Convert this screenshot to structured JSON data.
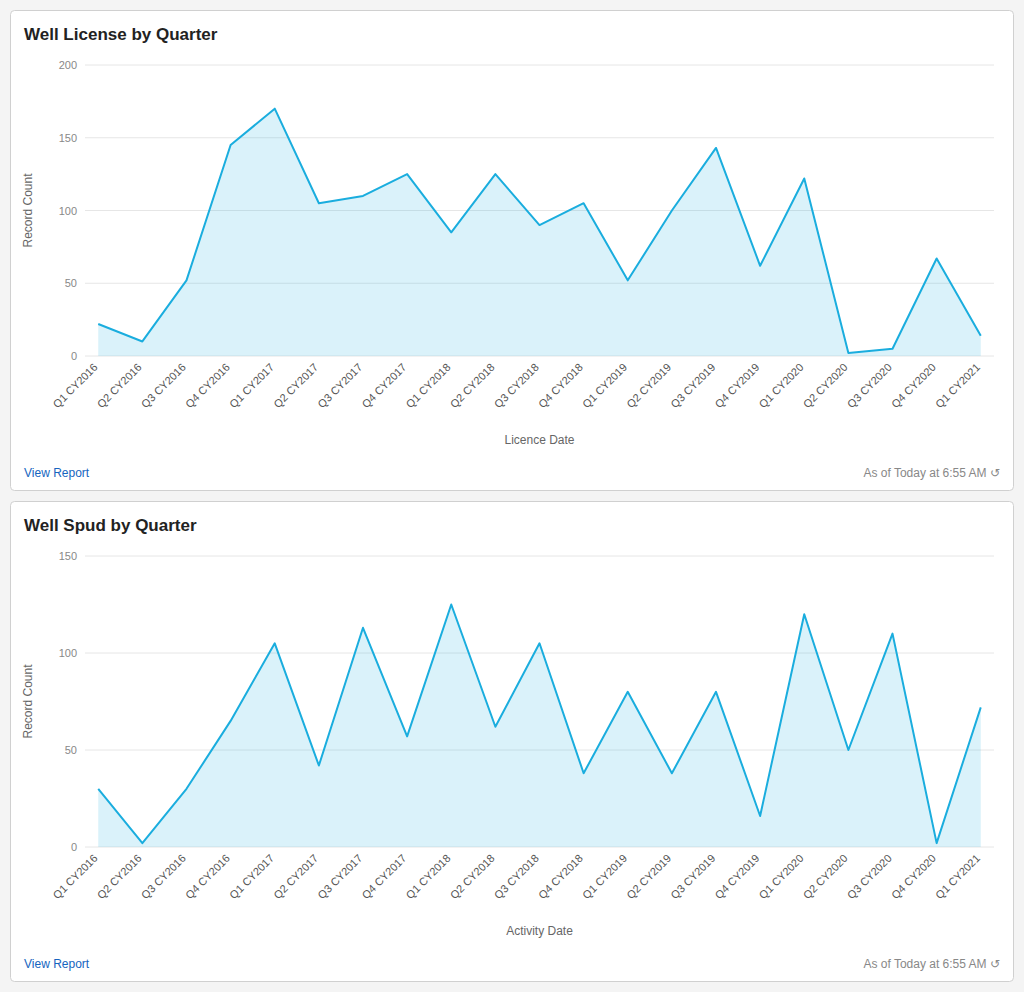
{
  "chart_data": [
    {
      "type": "area",
      "title": "Well License by Quarter",
      "x_label": "Licence Date",
      "y_label": "Record Count",
      "categories": [
        "Q1 CY2016",
        "Q2 CY2016",
        "Q3 CY2016",
        "Q4 CY2016",
        "Q1 CY2017",
        "Q2 CY2017",
        "Q3 CY2017",
        "Q4 CY2017",
        "Q1 CY2018",
        "Q2 CY2018",
        "Q3 CY2018",
        "Q4 CY2018",
        "Q1 CY2019",
        "Q2 CY2019",
        "Q3 CY2019",
        "Q4 CY2019",
        "Q1 CY2020",
        "Q2 CY2020",
        "Q3 CY2020",
        "Q4 CY2020",
        "Q1 CY2021"
      ],
      "values": [
        22,
        10,
        52,
        145,
        170,
        105,
        110,
        125,
        85,
        125,
        90,
        105,
        52,
        100,
        143,
        62,
        122,
        2,
        5,
        67,
        14
      ],
      "color": "#1AADDE",
      "ylim": [
        0,
        200
      ],
      "yticks": [
        0,
        50,
        100,
        150,
        200
      ],
      "grid": true,
      "annotations": [
        "View Report",
        "As of Today at 6:55 AM ↺"
      ]
    },
    {
      "type": "area",
      "title": "Well Spud by Quarter",
      "x_label": "Activity Date",
      "y_label": "Record Count",
      "categories": [
        "Q1 CY2016",
        "Q2 CY2016",
        "Q3 CY2016",
        "Q4 CY2016",
        "Q1 CY2017",
        "Q2 CY2017",
        "Q3 CY2017",
        "Q4 CY2017",
        "Q1 CY2018",
        "Q2 CY2018",
        "Q3 CY2018",
        "Q4 CY2018",
        "Q1 CY2019",
        "Q2 CY2019",
        "Q3 CY2019",
        "Q4 CY2019",
        "Q1 CY2020",
        "Q2 CY2020",
        "Q3 CY2020",
        "Q4 CY2020",
        "Q1 CY2021"
      ],
      "values": [
        30,
        2,
        30,
        65,
        105,
        42,
        113,
        57,
        125,
        62,
        105,
        38,
        80,
        38,
        80,
        16,
        120,
        50,
        110,
        2,
        72
      ],
      "color": "#1AADDE",
      "ylim": [
        0,
        150
      ],
      "yticks": [
        0,
        50,
        100,
        150
      ],
      "grid": true,
      "annotations": [
        "View Report",
        "As of Today at 6:55 AM ↺"
      ]
    }
  ]
}
